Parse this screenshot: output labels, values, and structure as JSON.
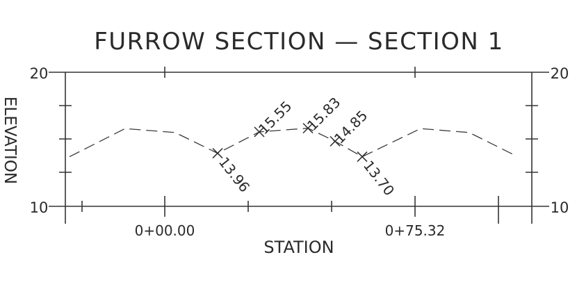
{
  "title": "FURROW SECTION — SECTION 1",
  "y_axis": {
    "label": "ELEVATION",
    "min_label": "10",
    "max_label": "20",
    "min": 10,
    "max": 20
  },
  "x_axis": {
    "label": "STATION",
    "tick_labels": [
      "0+00.00",
      "0+75.32"
    ]
  },
  "chart_data": {
    "type": "line",
    "title": "FURROW SECTION — SECTION 1",
    "ylabel": "ELEVATION",
    "xlabel": "STATION",
    "ylim": [
      10,
      20
    ],
    "profile_elevations": [
      13.7,
      15.8,
      15.5,
      13.96,
      15.55,
      15.83,
      14.85,
      13.7,
      15.8,
      15.5,
      13.9
    ],
    "labeled_points": [
      {
        "label": "13.96",
        "elevation": 13.96
      },
      {
        "label": "15.55",
        "elevation": 15.55
      },
      {
        "label": "15.83",
        "elevation": 15.83
      },
      {
        "label": "14.85",
        "elevation": 14.85
      },
      {
        "label": "13.70",
        "elevation": 13.7
      }
    ],
    "grid": false
  },
  "colors": {
    "ink": "#2a2a2a",
    "background": "#ffffff"
  }
}
